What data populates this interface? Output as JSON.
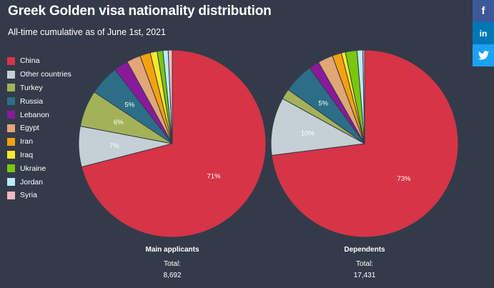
{
  "header": {
    "title": "Greek Golden visa nationality distribution",
    "subtitle": "All-time cumulative as of June 1st, 2021"
  },
  "share": {
    "facebook_icon": "f",
    "linkedin_icon": "in",
    "twitter_icon": "twitter-icon"
  },
  "chart_data": [
    {
      "type": "pie",
      "caption": "Main applicants",
      "total_label": "Total:",
      "total": "8,692",
      "slices": [
        {
          "name": "China",
          "value": 71.0,
          "label": "71%",
          "color": "#d63447"
        },
        {
          "name": "Other countries",
          "value": 7.0,
          "label": "7%",
          "color": "#c4d0d4"
        },
        {
          "name": "Turkey",
          "value": 6.3,
          "label": "6%",
          "color": "#a3b259"
        },
        {
          "name": "Russia",
          "value": 5.2,
          "label": "5%",
          "color": "#2c6e87"
        },
        {
          "name": "Lebanon",
          "value": 2.5,
          "label": "",
          "color": "#8a1a9c"
        },
        {
          "name": "Egypt",
          "value": 2.4,
          "label": "",
          "color": "#e2a677"
        },
        {
          "name": "Iran",
          "value": 1.8,
          "label": "",
          "color": "#f5a10d"
        },
        {
          "name": "Iraq",
          "value": 1.2,
          "label": "",
          "color": "#fde827"
        },
        {
          "name": "Ukraine",
          "value": 1.0,
          "label": "",
          "color": "#7ac70c"
        },
        {
          "name": "Jordan",
          "value": 0.9,
          "label": "",
          "color": "#b7ecf7"
        },
        {
          "name": "Syria",
          "value": 0.7,
          "label": "",
          "color": "#f3b8bf"
        }
      ]
    },
    {
      "type": "pie",
      "caption": "Dependents",
      "total_label": "Total:",
      "total": "17,431",
      "slices": [
        {
          "name": "China",
          "value": 73.0,
          "label": "73%",
          "color": "#d63447"
        },
        {
          "name": "Other countries",
          "value": 10.0,
          "label": "10%",
          "color": "#c4d0d4"
        },
        {
          "name": "Turkey",
          "value": 1.8,
          "label": "",
          "color": "#a3b259"
        },
        {
          "name": "Russia",
          "value": 5.2,
          "label": "5%",
          "color": "#2c6e87"
        },
        {
          "name": "Lebanon",
          "value": 1.8,
          "label": "",
          "color": "#8a1a9c"
        },
        {
          "name": "Egypt",
          "value": 2.6,
          "label": "",
          "color": "#e2a677"
        },
        {
          "name": "Iran",
          "value": 1.6,
          "label": "",
          "color": "#f5a10d"
        },
        {
          "name": "Iraq",
          "value": 0.7,
          "label": "",
          "color": "#fde827"
        },
        {
          "name": "Ukraine",
          "value": 2.0,
          "label": "",
          "color": "#7ac70c"
        },
        {
          "name": "Jordan",
          "value": 1.0,
          "label": "",
          "color": "#b7ecf7"
        },
        {
          "name": "Syria",
          "value": 0.3,
          "label": "",
          "color": "#f3b8bf"
        }
      ]
    }
  ],
  "legend": {
    "placement": "left",
    "items": [
      {
        "label": "China",
        "color": "#d63447"
      },
      {
        "label": "Other countries",
        "color": "#c4d0d4"
      },
      {
        "label": "Turkey",
        "color": "#a3b259"
      },
      {
        "label": "Russia",
        "color": "#2c6e87"
      },
      {
        "label": "Lebanon",
        "color": "#8a1a9c"
      },
      {
        "label": "Egypt",
        "color": "#e2a677"
      },
      {
        "label": "Iran",
        "color": "#f5a10d"
      },
      {
        "label": "Iraq",
        "color": "#fde827"
      },
      {
        "label": "Ukraine",
        "color": "#7ac70c"
      },
      {
        "label": "Jordan",
        "color": "#b7ecf7"
      },
      {
        "label": "Syria",
        "color": "#f3b8bf"
      }
    ]
  }
}
